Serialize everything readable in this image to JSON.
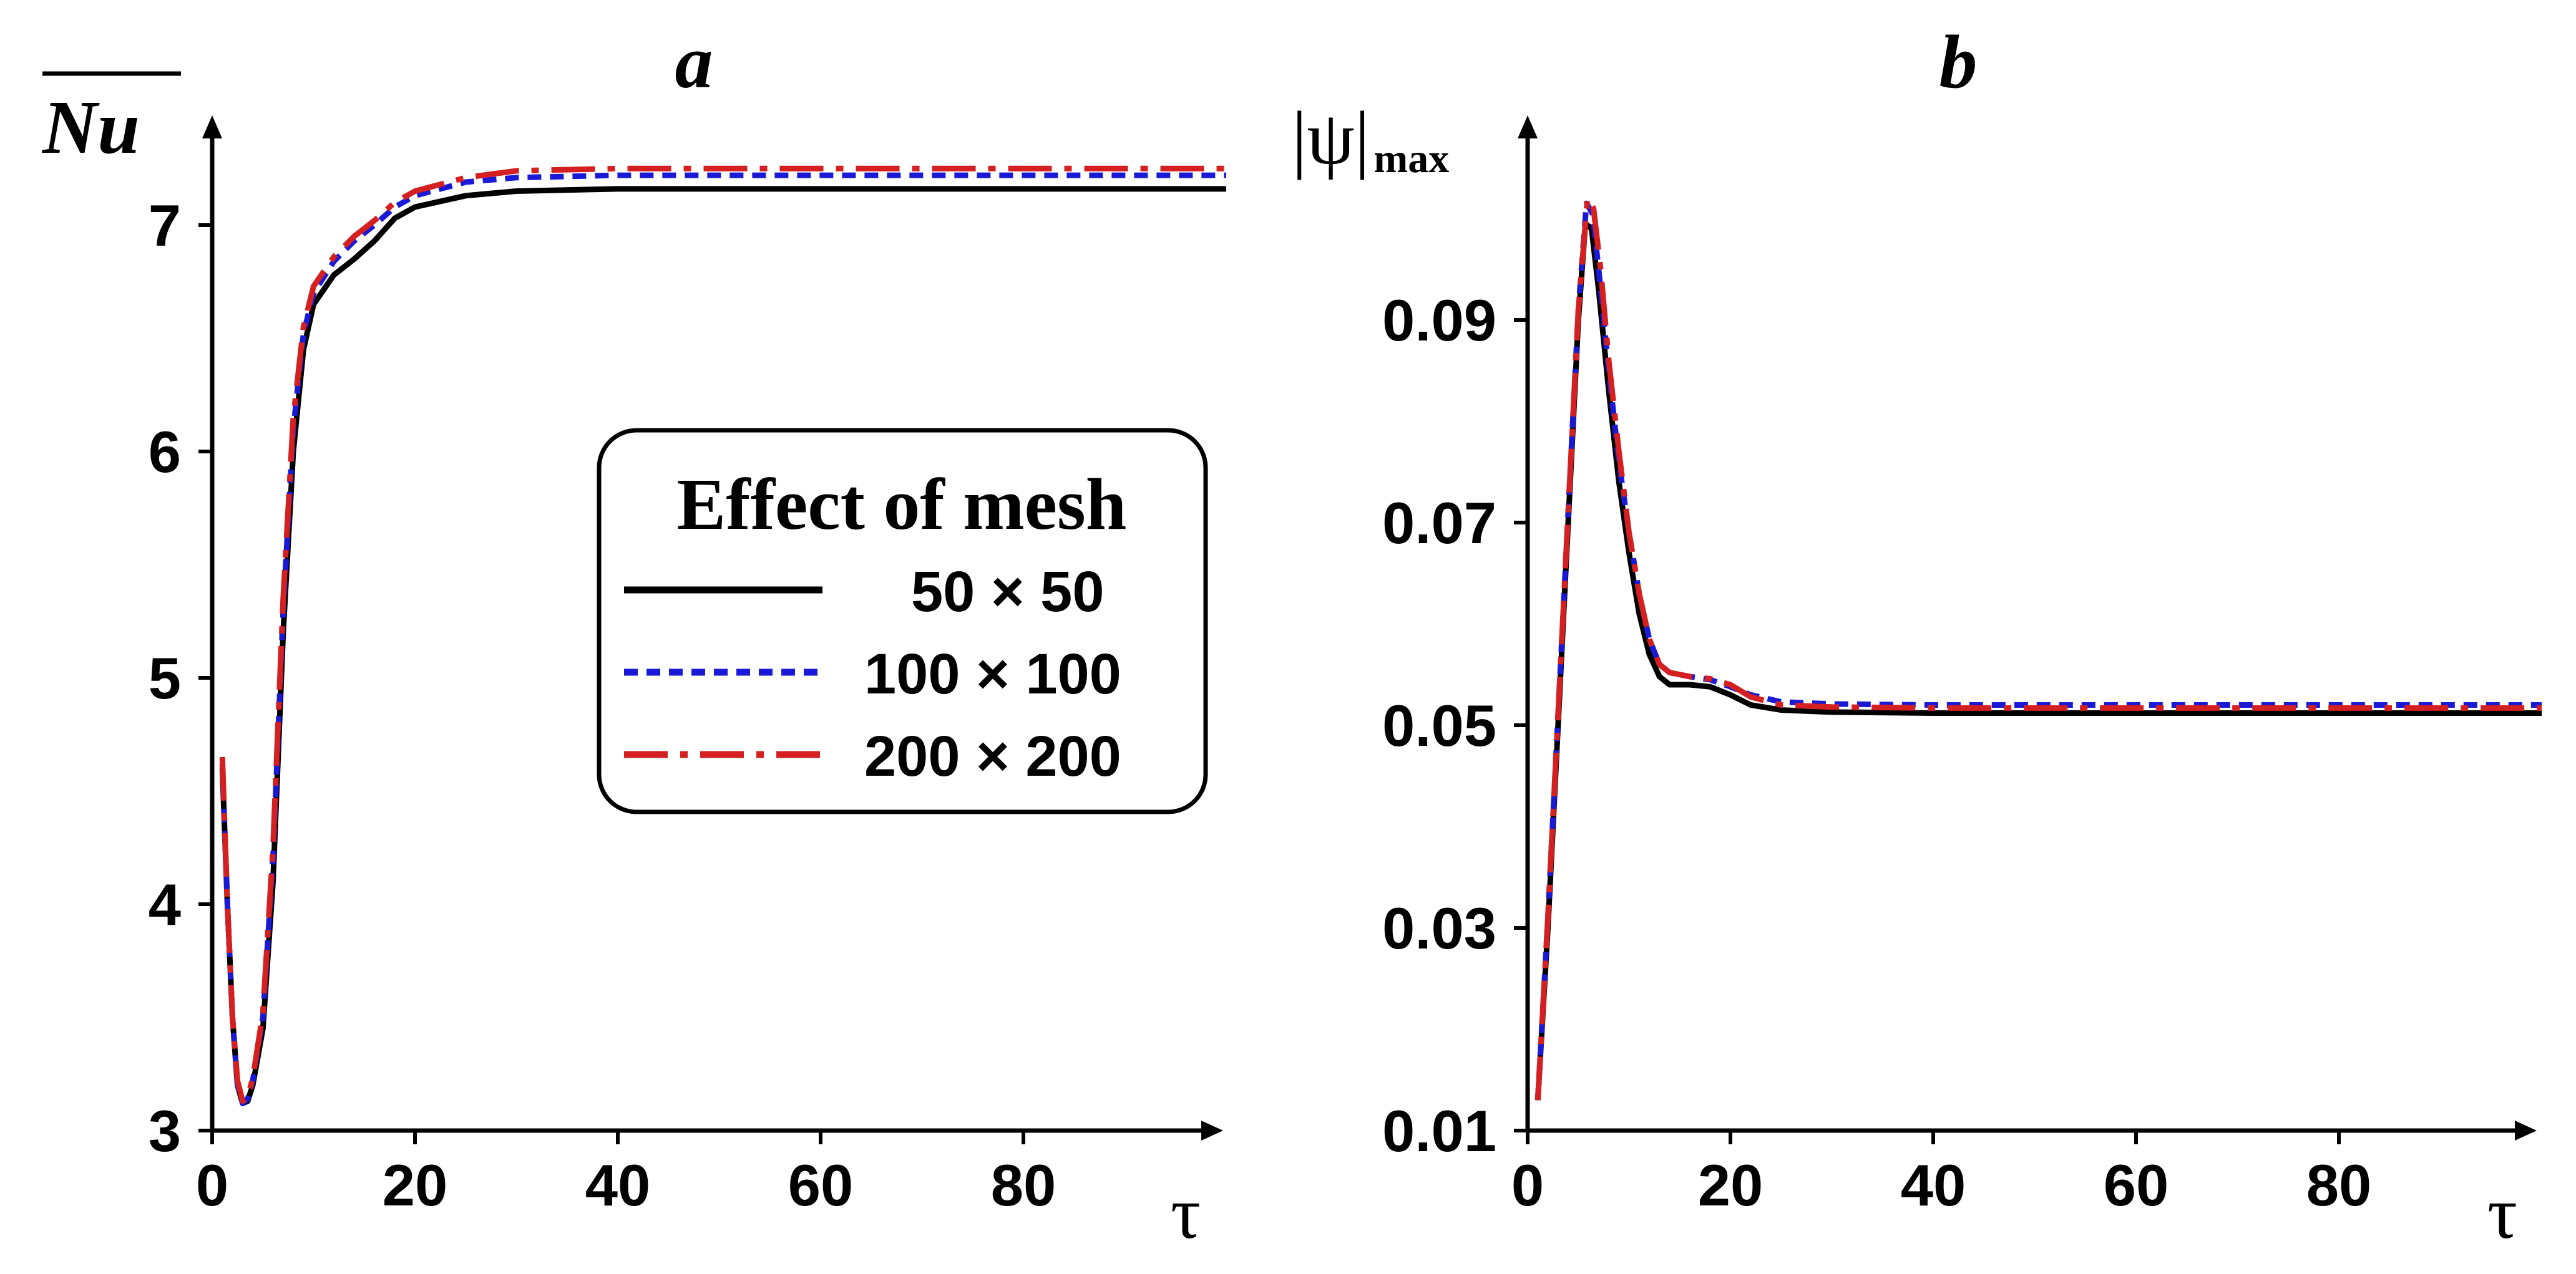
{
  "chart_data": [
    {
      "type": "line",
      "title": "a",
      "ylabel": "Nu",
      "xlabel": "τ",
      "xlim": [
        0,
        100
      ],
      "ylim": [
        3,
        7.5
      ],
      "xticks": [
        "0",
        "20",
        "40",
        "60",
        "80"
      ],
      "yticks": [
        "3",
        "4",
        "5",
        "6",
        "7"
      ],
      "legend": {
        "title": "Effect of mesh",
        "position": "center-right",
        "entries": [
          "50 × 50",
          "100 × 100",
          "200 × 200"
        ]
      },
      "series": [
        {
          "name": "50 × 50",
          "color": "#000000",
          "style": "solid",
          "points": [
            [
              1,
              4.6
            ],
            [
              1.5,
              4.0
            ],
            [
              2,
              3.5
            ],
            [
              2.5,
              3.2
            ],
            [
              3,
              3.12
            ],
            [
              3.5,
              3.13
            ],
            [
              4,
              3.2
            ],
            [
              5,
              3.45
            ],
            [
              6,
              4.1
            ],
            [
              7,
              5.2
            ],
            [
              8,
              6.0
            ],
            [
              9,
              6.45
            ],
            [
              10,
              6.65
            ],
            [
              12,
              6.78
            ],
            [
              14,
              6.85
            ],
            [
              16,
              6.93
            ],
            [
              18,
              7.03
            ],
            [
              20,
              7.08
            ],
            [
              25,
              7.13
            ],
            [
              30,
              7.15
            ],
            [
              40,
              7.16
            ],
            [
              60,
              7.16
            ],
            [
              100,
              7.16
            ]
          ]
        },
        {
          "name": "100 × 100",
          "color": "#1a1ad6",
          "style": "dashed",
          "points": [
            [
              1,
              4.62
            ],
            [
              1.5,
              4.0
            ],
            [
              2,
              3.5
            ],
            [
              2.5,
              3.2
            ],
            [
              3,
              3.12
            ],
            [
              3.5,
              3.14
            ],
            [
              4,
              3.22
            ],
            [
              5,
              3.5
            ],
            [
              6,
              4.2
            ],
            [
              7,
              5.3
            ],
            [
              8,
              6.1
            ],
            [
              9,
              6.52
            ],
            [
              10,
              6.7
            ],
            [
              12,
              6.84
            ],
            [
              14,
              6.93
            ],
            [
              16,
              7.0
            ],
            [
              18,
              7.08
            ],
            [
              20,
              7.13
            ],
            [
              25,
              7.19
            ],
            [
              30,
              7.21
            ],
            [
              40,
              7.22
            ],
            [
              60,
              7.22
            ],
            [
              100,
              7.22
            ]
          ]
        },
        {
          "name": "200 × 200",
          "color": "#d42020",
          "style": "dashdot",
          "points": [
            [
              1,
              4.65
            ],
            [
              1.5,
              4.0
            ],
            [
              2,
              3.5
            ],
            [
              2.5,
              3.22
            ],
            [
              3,
              3.13
            ],
            [
              3.5,
              3.15
            ],
            [
              4,
              3.23
            ],
            [
              5,
              3.52
            ],
            [
              6,
              4.25
            ],
            [
              7,
              5.35
            ],
            [
              8,
              6.15
            ],
            [
              9,
              6.55
            ],
            [
              10,
              6.73
            ],
            [
              12,
              6.86
            ],
            [
              14,
              6.95
            ],
            [
              16,
              7.02
            ],
            [
              18,
              7.1
            ],
            [
              20,
              7.15
            ],
            [
              25,
              7.21
            ],
            [
              30,
              7.24
            ],
            [
              40,
              7.25
            ],
            [
              60,
              7.25
            ],
            [
              100,
              7.25
            ]
          ]
        }
      ]
    },
    {
      "type": "line",
      "title": "b",
      "ylabel": "|ψ|",
      "ylabel_sub": "max",
      "xlabel": "τ",
      "xlim": [
        0,
        100
      ],
      "ylim": [
        0.01,
        0.11
      ],
      "xticks": [
        "0",
        "20",
        "40",
        "60",
        "80"
      ],
      "yticks": [
        "0.01",
        "0.03",
        "0.05",
        "0.07",
        "0.09"
      ],
      "series": [
        {
          "name": "50 × 50",
          "color": "#000000",
          "style": "solid",
          "points": [
            [
              1,
              0.013
            ],
            [
              2,
              0.03
            ],
            [
              3,
              0.05
            ],
            [
              4,
              0.07
            ],
            [
              5,
              0.09
            ],
            [
              5.7,
              0.0995
            ],
            [
              6.3,
              0.099
            ],
            [
              7,
              0.093
            ],
            [
              8,
              0.083
            ],
            [
              9,
              0.074
            ],
            [
              10,
              0.067
            ],
            [
              11,
              0.061
            ],
            [
              12,
              0.057
            ],
            [
              13,
              0.0548
            ],
            [
              14,
              0.054
            ],
            [
              16,
              0.054
            ],
            [
              18,
              0.0538
            ],
            [
              20,
              0.053
            ],
            [
              22,
              0.052
            ],
            [
              25,
              0.0515
            ],
            [
              30,
              0.0513
            ],
            [
              40,
              0.0512
            ],
            [
              60,
              0.0512
            ],
            [
              100,
              0.0512
            ]
          ]
        },
        {
          "name": "100 × 100",
          "color": "#1a1ad6",
          "style": "dashed",
          "points": [
            [
              1,
              0.013
            ],
            [
              2,
              0.031
            ],
            [
              3,
              0.051
            ],
            [
              4,
              0.071
            ],
            [
              5,
              0.091
            ],
            [
              5.8,
              0.1015
            ],
            [
              6.4,
              0.1005
            ],
            [
              7,
              0.095
            ],
            [
              8,
              0.085
            ],
            [
              9,
              0.076
            ],
            [
              10,
              0.069
            ],
            [
              11,
              0.063
            ],
            [
              12,
              0.0585
            ],
            [
              13,
              0.056
            ],
            [
              14,
              0.0552
            ],
            [
              16,
              0.0548
            ],
            [
              18,
              0.0545
            ],
            [
              20,
              0.0538
            ],
            [
              22,
              0.053
            ],
            [
              25,
              0.0523
            ],
            [
              30,
              0.0521
            ],
            [
              40,
              0.052
            ],
            [
              60,
              0.052
            ],
            [
              100,
              0.052
            ]
          ]
        },
        {
          "name": "200 × 200",
          "color": "#d42020",
          "style": "dashdot",
          "points": [
            [
              1,
              0.013
            ],
            [
              2,
              0.031
            ],
            [
              3,
              0.051
            ],
            [
              4,
              0.071
            ],
            [
              5,
              0.091
            ],
            [
              5.9,
              0.102
            ],
            [
              6.5,
              0.101
            ],
            [
              7.2,
              0.095
            ],
            [
              8,
              0.086
            ],
            [
              9,
              0.077
            ],
            [
              10,
              0.069
            ],
            [
              11,
              0.063
            ],
            [
              12,
              0.0585
            ],
            [
              13,
              0.056
            ],
            [
              14,
              0.0552
            ],
            [
              16,
              0.0548
            ],
            [
              18,
              0.0546
            ],
            [
              20,
              0.054
            ],
            [
              22,
              0.0528
            ],
            [
              25,
              0.052
            ],
            [
              30,
              0.0518
            ],
            [
              40,
              0.0517
            ],
            [
              60,
              0.0517
            ],
            [
              100,
              0.0517
            ]
          ]
        }
      ]
    }
  ]
}
